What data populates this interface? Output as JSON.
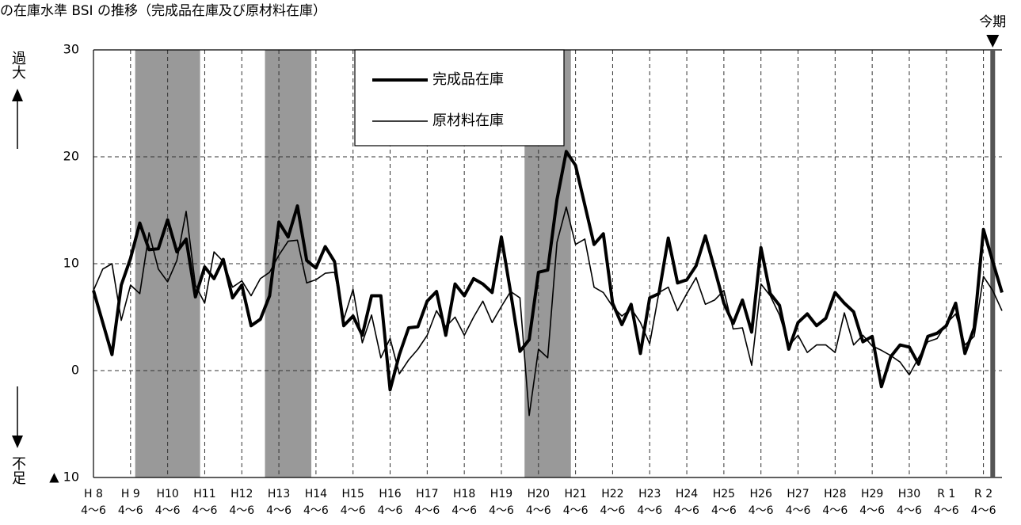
{
  "chart_data": {
    "type": "line",
    "title": "の在庫水準 BSI の推移（完成品在庫及び原材料在庫）",
    "annotations": {
      "upper": "過大",
      "lower": "不足",
      "current": "今期"
    },
    "categories": [
      "H 8",
      null,
      null,
      null,
      "H 9",
      null,
      null,
      null,
      "H10",
      null,
      null,
      null,
      "H11",
      null,
      null,
      null,
      "H12",
      null,
      null,
      null,
      "H13",
      null,
      null,
      null,
      "H14",
      null,
      null,
      null,
      "H15",
      null,
      null,
      null,
      "H16",
      null,
      null,
      null,
      "H17",
      null,
      null,
      null,
      "H18",
      null,
      null,
      null,
      "H19",
      null,
      null,
      null,
      "H20",
      null,
      null,
      null,
      "H21",
      null,
      null,
      null,
      "H22",
      null,
      null,
      null,
      "H23",
      null,
      null,
      null,
      "H24",
      null,
      null,
      null,
      "H25",
      null,
      null,
      null,
      "H26",
      null,
      null,
      null,
      "H27",
      null,
      null,
      null,
      "H28",
      null,
      null,
      null,
      "H29",
      null,
      null,
      null,
      "H30",
      null,
      null,
      null,
      "R 1",
      null,
      null,
      null,
      "R 2",
      null,
      null
    ],
    "category_sublabel": "4～6",
    "series": [
      {
        "name": "完成品在庫",
        "color": "#000000",
        "width": 4,
        "values": [
          7.5,
          4.5,
          1.5,
          8,
          10.5,
          13.8,
          11.3,
          11.4,
          14.1,
          11.1,
          12.3,
          6.9,
          9.7,
          8.6,
          10.4,
          6.8,
          8,
          4.2,
          4.8,
          7,
          13.9,
          12.5,
          15.4,
          10.3,
          9.6,
          11.6,
          10.2,
          4.2,
          5.1,
          3.3,
          7,
          7,
          -1.8,
          1.5,
          4,
          4.1,
          6.5,
          7.4,
          3.3,
          8.1,
          7,
          8.6,
          8.1,
          7.3,
          12.5,
          7.3,
          1.8,
          2.9,
          9.2,
          9.4,
          16,
          20.5,
          19.2,
          15.5,
          11.8,
          12.8,
          6.3,
          4.3,
          6.2,
          1.6,
          6.8,
          7.2,
          12.4,
          8.2,
          8.5,
          9.8,
          12.6,
          9.5,
          6.3,
          4.4,
          6.6,
          3.6,
          11.5,
          7.2,
          6.1,
          2,
          4.5,
          5.3,
          4.2,
          4.9,
          7.3,
          6.3,
          5.5,
          2.7,
          3.2,
          -1.5,
          1.3,
          2.4,
          2.2,
          0.6,
          3.2,
          3.5,
          4.2,
          6.3,
          1.6,
          4,
          13.2,
          10.2,
          7.3
        ]
      },
      {
        "name": "原材料在庫",
        "color": "#000000",
        "width": 1.6,
        "values": [
          7.5,
          9.5,
          10,
          4.7,
          8,
          7.2,
          12.9,
          9.5,
          8.3,
          10.3,
          14.9,
          8,
          6.3,
          11.1,
          10.2,
          7.8,
          8.4,
          7,
          8.6,
          9.2,
          10.8,
          12.1,
          12.2,
          8.2,
          8.5,
          9.1,
          9.2,
          4.8,
          7.6,
          2.6,
          5.2,
          1.2,
          3,
          -0.3,
          1,
          2,
          3.3,
          5.6,
          4.1,
          5,
          3.3,
          5,
          6.5,
          4.5,
          6,
          7.4,
          6.8,
          -4.2,
          2,
          1.2,
          12,
          15.3,
          11.8,
          12.3,
          7.8,
          7.3,
          6,
          5.1,
          5.8,
          4.5,
          2.5,
          7.3,
          7.8,
          5.6,
          7.2,
          8.7,
          6.2,
          6.6,
          7.5,
          3.9,
          4,
          0.5,
          8.1,
          7,
          5.2,
          2.3,
          3.3,
          1.7,
          2.4,
          2.4,
          1.7,
          5.4,
          2.4,
          3.3,
          2.3,
          1.9,
          1.4,
          0.8,
          -0.4,
          1.2,
          2.7,
          3,
          4.4,
          5.3,
          2.4,
          3.2,
          8.8,
          7.5,
          5.6
        ]
      }
    ],
    "shaded_ranges": [
      [
        4.5,
        11.5
      ],
      [
        18.5,
        23.5
      ],
      [
        46.5,
        51.5
      ]
    ],
    "shade_color": "#999999",
    "current_index": 97,
    "current_color": "#555555",
    "ylim": [
      -10,
      30
    ],
    "yticks": [
      {
        "value": -10,
        "label": "▲ 10"
      },
      0,
      10,
      20,
      30
    ],
    "grid": true,
    "legend": "upper center"
  }
}
